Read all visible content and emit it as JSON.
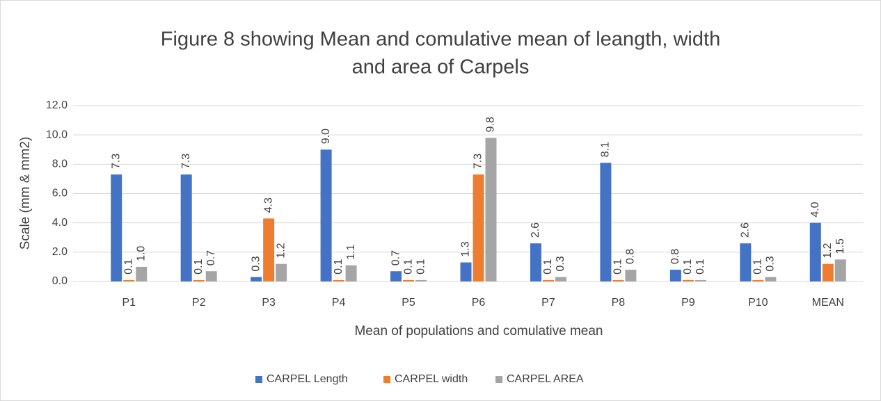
{
  "chart_data": {
    "type": "bar",
    "title": "Figure 8 showing Mean and comulative mean of leangth, width and area of Carpels",
    "title_lines": [
      "Figure 8 showing Mean and comulative mean of leangth, width",
      "and area of Carpels"
    ],
    "x_label": "Mean of populations and comulative mean",
    "y_label": "Scale (mm & mm2)",
    "categories": [
      "P1",
      "P2",
      "P3",
      "P4",
      "P5",
      "P6",
      "P7",
      "P8",
      "P9",
      "P10",
      "MEAN"
    ],
    "series": [
      {
        "name": "CARPEL Length",
        "color": "#4472c4",
        "values": [
          7.3,
          7.3,
          0.3,
          9.0,
          0.7,
          1.3,
          2.6,
          8.1,
          0.8,
          2.6,
          4.0
        ],
        "value_labels": [
          "7.3",
          "7.3",
          "0.3",
          "9.0",
          "0.7",
          "1.3",
          "2.6",
          "8.1",
          "0.8",
          "2.6",
          "4.0"
        ]
      },
      {
        "name": "CARPEL width",
        "color": "#ed7d31",
        "values": [
          0.1,
          0.1,
          4.3,
          0.1,
          0.1,
          7.3,
          0.1,
          0.1,
          0.1,
          0.1,
          1.2
        ],
        "value_labels": [
          "0.1",
          "0.1",
          "4.3",
          "0.1",
          "0.1",
          "7.3",
          "0.1",
          "0.1",
          "0.1",
          "0.1",
          "1.2"
        ]
      },
      {
        "name": "CARPEL AREA",
        "color": "#a5a5a5",
        "values": [
          1.0,
          0.7,
          1.2,
          1.1,
          0.1,
          9.8,
          0.3,
          0.8,
          0.1,
          0.3,
          1.5
        ],
        "value_labels": [
          "1.0",
          "0.7",
          "1.2",
          "1.1",
          "0.1",
          "9.8",
          "0.3",
          "0.8",
          "0.1",
          "0.3",
          "1.5"
        ]
      }
    ],
    "ylim": [
      0,
      12
    ],
    "yticks": [
      {
        "value": 0,
        "label": "0.0"
      },
      {
        "value": 2,
        "label": "2.0"
      },
      {
        "value": 4,
        "label": "4.0"
      },
      {
        "value": 6,
        "label": "6.0"
      },
      {
        "value": 8,
        "label": "8.0"
      },
      {
        "value": 10,
        "label": "10.0"
      },
      {
        "value": 12,
        "label": "12.0"
      }
    ],
    "grid": true,
    "legend": "bottom"
  }
}
